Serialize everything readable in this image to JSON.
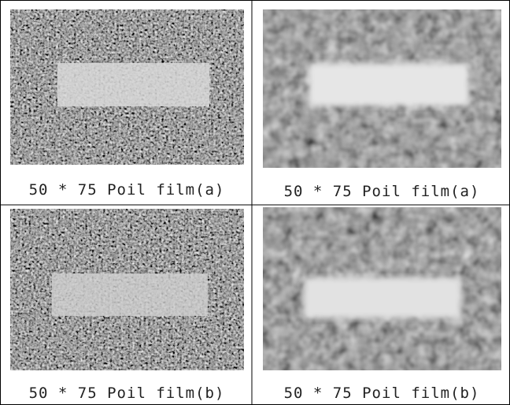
{
  "cells": [
    {
      "caption": "50 * 75 Poil film(a)"
    },
    {
      "caption": "50 * 75 Poil film(a)"
    },
    {
      "caption": "50 * 75 Poil film(b)"
    },
    {
      "caption": "50 * 75 Poil film(b)"
    }
  ]
}
